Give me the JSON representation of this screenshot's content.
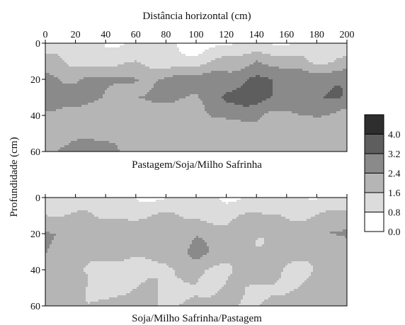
{
  "chart_data": [
    {
      "type": "heatmap",
      "title": "",
      "xlabel": "Distância horizontal (cm)",
      "ylabel": "Profundidade (cm)",
      "caption": "Pastagem/Soja/Milho Safrinha",
      "xlim": [
        0,
        200
      ],
      "ylim": [
        0,
        60
      ],
      "x_ticks": [
        "0",
        "20",
        "40",
        "60",
        "80",
        "100",
        "120",
        "140",
        "160",
        "180",
        "200"
      ],
      "y_ticks": [
        "0",
        "20",
        "40",
        "60"
      ],
      "x_axis_position": "top",
      "grid": false,
      "x": [
        0,
        20,
        40,
        60,
        80,
        100,
        120,
        140,
        160,
        180,
        200
      ],
      "y": [
        0,
        10,
        20,
        30,
        40,
        50,
        60
      ],
      "z": [
        [
          0.9,
          0.9,
          0.8,
          0.8,
          0.9,
          0.8,
          0.6,
          0.8,
          0.8,
          0.8,
          0.9
        ],
        [
          1.9,
          1.6,
          1.0,
          1.3,
          1.1,
          1.0,
          1.9,
          2.6,
          1.9,
          1.2,
          1.9
        ],
        [
          2.8,
          2.5,
          2.5,
          2.5,
          2.4,
          2.6,
          3.0,
          3.4,
          3.0,
          3.3,
          2.9
        ],
        [
          2.8,
          2.6,
          2.6,
          2.5,
          2.5,
          2.4,
          3.3,
          3.3,
          3.3,
          3.2,
          3.1
        ],
        [
          1.9,
          1.9,
          2.0,
          2.2,
          1.9,
          2.1,
          2.4,
          2.6,
          2.0,
          2.4,
          2.3
        ],
        [
          2.1,
          2.0,
          1.9,
          1.9,
          1.8,
          1.7,
          2.0,
          2.2,
          1.8,
          1.7,
          1.8
        ],
        [
          2.5,
          2.9,
          2.6,
          2.2,
          2.0,
          2.0,
          2.3,
          2.0,
          1.9,
          1.8,
          1.8
        ]
      ]
    },
    {
      "type": "heatmap",
      "title": "",
      "xlabel": "",
      "ylabel": "Profundidade (cm)",
      "caption": "Soja/Milho Safrinha/Pastagem",
      "xlim": [
        0,
        200
      ],
      "ylim": [
        0,
        60
      ],
      "y_ticks": [
        "0",
        "20",
        "40",
        "60"
      ],
      "grid": false,
      "x": [
        0,
        20,
        40,
        60,
        80,
        100,
        120,
        140,
        160,
        180,
        200
      ],
      "y": [
        0,
        10,
        20,
        30,
        40,
        50,
        60
      ],
      "z": [
        [
          1.0,
          0.9,
          0.8,
          0.9,
          0.9,
          0.9,
          0.8,
          0.8,
          0.7,
          0.9,
          0.9
        ],
        [
          1.8,
          1.5,
          1.4,
          1.5,
          1.6,
          1.6,
          1.6,
          1.6,
          1.5,
          1.6,
          1.7
        ],
        [
          2.5,
          2.3,
          2.3,
          2.0,
          1.8,
          2.4,
          1.8,
          1.9,
          2.1,
          1.9,
          2.6
        ],
        [
          2.4,
          2.2,
          1.8,
          1.8,
          1.9,
          2.4,
          1.8,
          1.9,
          1.8,
          2.0,
          2.1
        ],
        [
          1.8,
          1.6,
          1.2,
          1.7,
          1.5,
          1.7,
          1.5,
          1.6,
          1.5,
          1.8,
          1.7
        ],
        [
          1.7,
          1.7,
          1.3,
          1.6,
          1.5,
          1.8,
          1.5,
          1.4,
          1.6,
          1.7,
          1.7
        ],
        [
          2.0,
          1.9,
          1.6,
          1.8,
          1.7,
          1.8,
          1.7,
          1.8,
          1.7,
          1.8,
          1.8
        ]
      ]
    }
  ],
  "legend": {
    "levels": [
      "0.0",
      "0.8",
      "1.6",
      "2.4",
      "3.2",
      "4.0"
    ],
    "colors": [
      "#ffffff",
      "#dcdcdc",
      "#b5b5b5",
      "#8a8a8a",
      "#5e5e5e",
      "#2e2e2e"
    ]
  }
}
